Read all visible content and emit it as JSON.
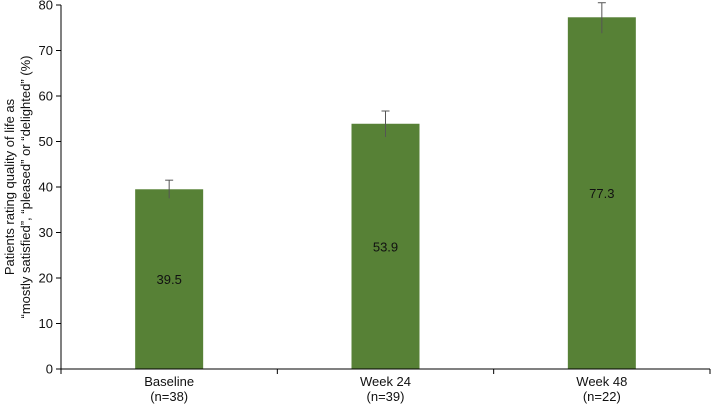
{
  "chart_data": {
    "type": "bar",
    "categories": [
      "Baseline\n(n=38)",
      "Week 24\n(n=39)",
      "Week 48\n(n=22)"
    ],
    "values": [
      39.5,
      53.9,
      77.3
    ],
    "error_upper": [
      41.5,
      56.7,
      80.5
    ],
    "error_lower": [
      37.5,
      51.0,
      73.8
    ],
    "data_labels": [
      "39.5",
      "53.9",
      "77.3"
    ],
    "ylabel_line1": "Patients rating quality of life as",
    "ylabel_line2": "“mostly satisfied”, “pleased” or “delighted” (%)",
    "ylim": [
      0,
      80
    ],
    "yticks": [
      0,
      10,
      20,
      30,
      40,
      50,
      60,
      70,
      80
    ],
    "grid": false,
    "legend": "none",
    "bar_color": "#578136",
    "error_bar_color": "#555555"
  }
}
